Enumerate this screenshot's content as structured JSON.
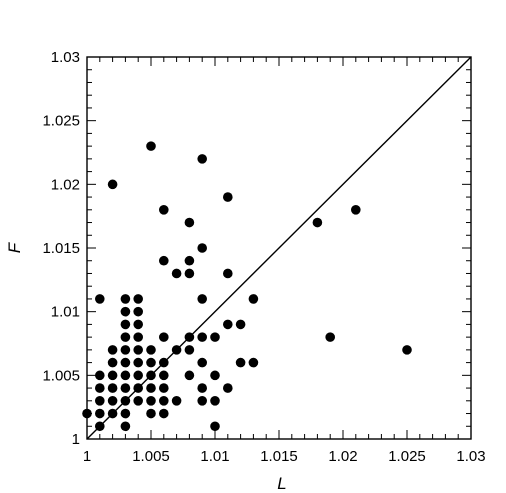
{
  "chart_data": {
    "type": "scatter",
    "xlabel": "L",
    "ylabel": "F",
    "xlim": [
      1,
      1.03
    ],
    "ylim": [
      1,
      1.03
    ],
    "x_ticks": [
      "1",
      "1.005",
      "1.01",
      "1.015",
      "1.02",
      "1.025",
      "1.03"
    ],
    "y_ticks": [
      "1",
      "1.005",
      "1.01",
      "1.015",
      "1.02",
      "1.025",
      "1.03"
    ],
    "grid": false,
    "reference_line": {
      "from": [
        1,
        1
      ],
      "to": [
        1.03,
        1.03
      ]
    },
    "series": [
      {
        "points": [
          [
            1.0,
            1.002
          ],
          [
            1.001,
            1.001
          ],
          [
            1.001,
            1.002
          ],
          [
            1.001,
            1.003
          ],
          [
            1.001,
            1.004
          ],
          [
            1.001,
            1.005
          ],
          [
            1.001,
            1.011
          ],
          [
            1.002,
            1.002
          ],
          [
            1.002,
            1.003
          ],
          [
            1.002,
            1.004
          ],
          [
            1.002,
            1.005
          ],
          [
            1.002,
            1.006
          ],
          [
            1.002,
            1.007
          ],
          [
            1.002,
            1.02
          ],
          [
            1.003,
            1.001
          ],
          [
            1.003,
            1.002
          ],
          [
            1.003,
            1.003
          ],
          [
            1.003,
            1.004
          ],
          [
            1.003,
            1.005
          ],
          [
            1.003,
            1.006
          ],
          [
            1.003,
            1.007
          ],
          [
            1.003,
            1.008
          ],
          [
            1.003,
            1.009
          ],
          [
            1.003,
            1.01
          ],
          [
            1.003,
            1.011
          ],
          [
            1.004,
            1.003
          ],
          [
            1.004,
            1.004
          ],
          [
            1.004,
            1.005
          ],
          [
            1.004,
            1.006
          ],
          [
            1.004,
            1.007
          ],
          [
            1.004,
            1.008
          ],
          [
            1.004,
            1.009
          ],
          [
            1.004,
            1.01
          ],
          [
            1.004,
            1.011
          ],
          [
            1.005,
            1.002
          ],
          [
            1.005,
            1.003
          ],
          [
            1.005,
            1.004
          ],
          [
            1.005,
            1.005
          ],
          [
            1.005,
            1.006
          ],
          [
            1.005,
            1.007
          ],
          [
            1.005,
            1.023
          ],
          [
            1.006,
            1.002
          ],
          [
            1.006,
            1.003
          ],
          [
            1.006,
            1.004
          ],
          [
            1.006,
            1.005
          ],
          [
            1.006,
            1.006
          ],
          [
            1.006,
            1.008
          ],
          [
            1.006,
            1.014
          ],
          [
            1.006,
            1.018
          ],
          [
            1.007,
            1.003
          ],
          [
            1.007,
            1.007
          ],
          [
            1.007,
            1.013
          ],
          [
            1.008,
            1.005
          ],
          [
            1.008,
            1.007
          ],
          [
            1.008,
            1.008
          ],
          [
            1.008,
            1.013
          ],
          [
            1.008,
            1.014
          ],
          [
            1.008,
            1.017
          ],
          [
            1.009,
            1.003
          ],
          [
            1.009,
            1.004
          ],
          [
            1.009,
            1.006
          ],
          [
            1.009,
            1.008
          ],
          [
            1.009,
            1.011
          ],
          [
            1.009,
            1.015
          ],
          [
            1.009,
            1.022
          ],
          [
            1.01,
            1.001
          ],
          [
            1.01,
            1.003
          ],
          [
            1.01,
            1.005
          ],
          [
            1.01,
            1.008
          ],
          [
            1.011,
            1.004
          ],
          [
            1.011,
            1.009
          ],
          [
            1.011,
            1.013
          ],
          [
            1.011,
            1.019
          ],
          [
            1.012,
            1.006
          ],
          [
            1.012,
            1.009
          ],
          [
            1.013,
            1.006
          ],
          [
            1.013,
            1.011
          ],
          [
            1.018,
            1.017
          ],
          [
            1.019,
            1.008
          ],
          [
            1.021,
            1.018
          ],
          [
            1.025,
            1.007
          ]
        ]
      }
    ]
  }
}
